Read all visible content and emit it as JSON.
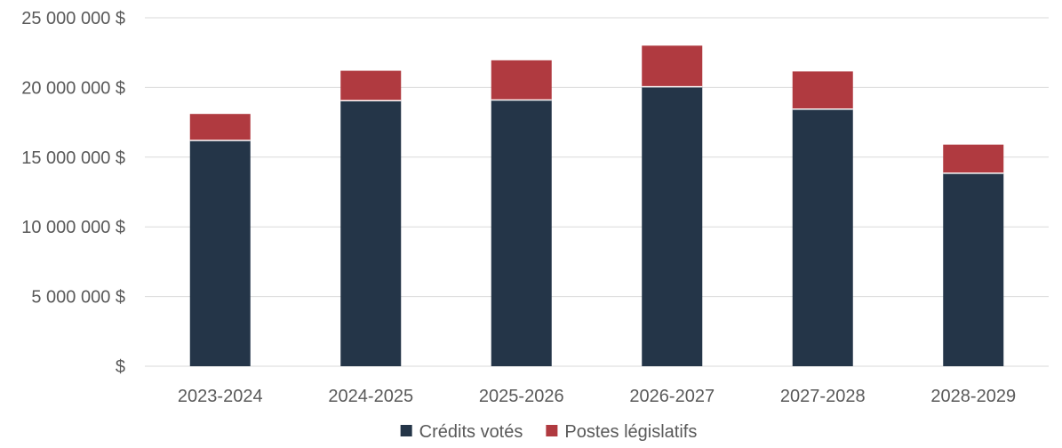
{
  "chart_data": {
    "type": "bar",
    "stacked": true,
    "categories": [
      "2023-2024",
      "2024-2025",
      "2025-2026",
      "2026-2027",
      "2027-2028",
      "2028-2029"
    ],
    "series": [
      {
        "name": "Crédits votés",
        "color": "#243548",
        "values": [
          16200000,
          19050000,
          19100000,
          20050000,
          18450000,
          13850000
        ]
      },
      {
        "name": "Postes législatifs",
        "color": "#b03a40",
        "values": [
          1900000,
          2150000,
          2850000,
          2950000,
          2700000,
          2050000
        ]
      }
    ],
    "ylim": [
      0,
      25000000
    ],
    "y_ticks": [
      0,
      5000000,
      10000000,
      15000000,
      20000000,
      25000000
    ],
    "y_tick_labels": [
      "$",
      "5 000 000 $",
      "10 000 000 $",
      "15 000 000 $",
      "20 000 000 $",
      "25 000 000 $"
    ],
    "title": "",
    "xlabel": "",
    "ylabel": "",
    "grid": true,
    "legend_position": "bottom",
    "colors": {
      "gridline": "#d9d9d9",
      "text": "#595959",
      "bar_separator": "#ffffff"
    }
  }
}
